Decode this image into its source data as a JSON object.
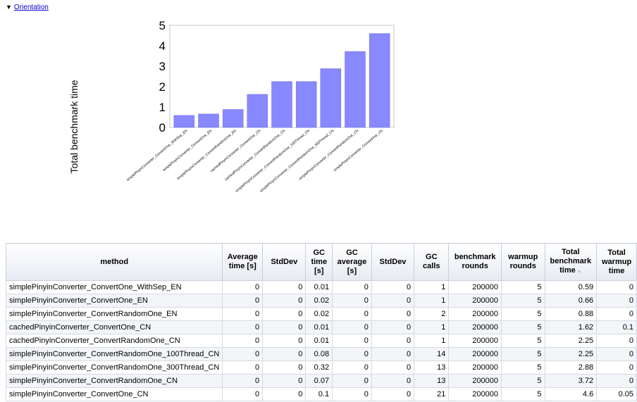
{
  "toggle": {
    "arrow": "▼",
    "label": "Orientation"
  },
  "chart_data": {
    "type": "bar",
    "title": "",
    "xlabel": "",
    "ylabel": "Total benchmark time",
    "ylim": [
      0,
      5
    ],
    "yticks": [
      "0",
      "1",
      "2",
      "3",
      "4",
      "5"
    ],
    "grid": false,
    "bar_color": "#8888ff",
    "categories": [
      "simplePinyinConverter_ConvertOne_WithSep_EN",
      "simplePinyinConverter_ConvertOne_EN",
      "simplePinyinConverter_ConvertRandomOne_EN",
      "cachedPinyinConverter_ConvertOne_CN",
      "cachedPinyinConverter_ConvertRandomOne_CN",
      "simplePinyinConverter_ConvertRandomOne_100Thread_CN",
      "simplePinyinConverter_ConvertRandomOne_300Thread_CN",
      "simplePinyinConverter_ConvertRandomOne_CN",
      "simplePinyinConverter_ConvertOne_CN"
    ],
    "values": [
      0.59,
      0.66,
      0.88,
      1.62,
      2.25,
      2.25,
      2.88,
      3.72,
      4.6
    ]
  },
  "table": {
    "headers": [
      "method",
      "Average time [s]",
      "StdDev",
      "GC time [s]",
      "GC average [s]",
      "StdDev",
      "GC calls",
      "benchmark rounds",
      "warmup rounds",
      "Total benchmark time",
      "Total warmup time"
    ],
    "sort_indicator": "▲",
    "rows": [
      [
        "simplePinyinConverter_ConvertOne_WithSep_EN",
        "0",
        "0",
        "0.01",
        "0",
        "0",
        "1",
        "200000",
        "5",
        "0.59",
        "0"
      ],
      [
        "simplePinyinConverter_ConvertOne_EN",
        "0",
        "0",
        "0.02",
        "0",
        "0",
        "1",
        "200000",
        "5",
        "0.66",
        "0"
      ],
      [
        "simplePinyinConverter_ConvertRandomOne_EN",
        "0",
        "0",
        "0.02",
        "0",
        "0",
        "2",
        "200000",
        "5",
        "0.88",
        "0"
      ],
      [
        "cachedPinyinConverter_ConvertOne_CN",
        "0",
        "0",
        "0.01",
        "0",
        "0",
        "1",
        "200000",
        "5",
        "1.62",
        "0.1"
      ],
      [
        "cachedPinyinConverter_ConvertRandomOne_CN",
        "0",
        "0",
        "0.01",
        "0",
        "0",
        "1",
        "200000",
        "5",
        "2.25",
        "0"
      ],
      [
        "simplePinyinConverter_ConvertRandomOne_100Thread_CN",
        "0",
        "0",
        "0.08",
        "0",
        "0",
        "14",
        "200000",
        "5",
        "2.25",
        "0"
      ],
      [
        "simplePinyinConverter_ConvertRandomOne_300Thread_CN",
        "0",
        "0",
        "0.32",
        "0",
        "0",
        "13",
        "200000",
        "5",
        "2.88",
        "0"
      ],
      [
        "simplePinyinConverter_ConvertRandomOne_CN",
        "0",
        "0",
        "0.07",
        "0",
        "0",
        "13",
        "200000",
        "5",
        "3.72",
        "0"
      ],
      [
        "simplePinyinConverter_ConvertOne_CN",
        "0",
        "0",
        "0.1",
        "0",
        "0",
        "21",
        "200000",
        "5",
        "4.6",
        "0.05"
      ]
    ]
  }
}
